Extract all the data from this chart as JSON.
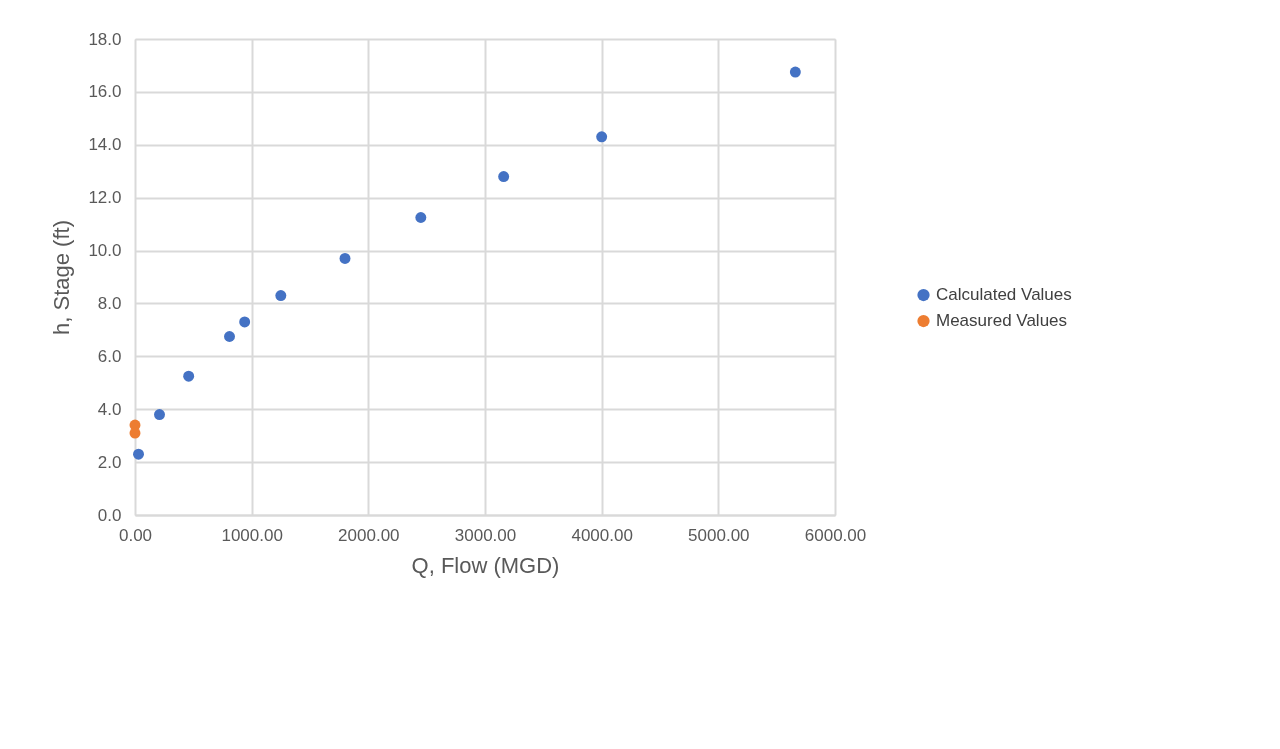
{
  "chart_data": {
    "type": "scatter",
    "xlabel": "Q, Flow (MGD)",
    "ylabel": "h, Stage (ft)",
    "xlim": [
      0,
      6000
    ],
    "xticks": [
      {
        "value": 0,
        "label": "0.00"
      },
      {
        "value": 1000,
        "label": "1000.00"
      },
      {
        "value": 2000,
        "label": "2000.00"
      },
      {
        "value": 3000,
        "label": "3000.00"
      },
      {
        "value": 4000,
        "label": "4000.00"
      },
      {
        "value": 5000,
        "label": "5000.00"
      },
      {
        "value": 6000,
        "label": "6000.00"
      }
    ],
    "ylim": [
      0,
      18
    ],
    "yticks": [
      {
        "value": 0,
        "label": "0.0"
      },
      {
        "value": 2,
        "label": "2.0"
      },
      {
        "value": 4,
        "label": "4.0"
      },
      {
        "value": 6,
        "label": "6.0"
      },
      {
        "value": 8,
        "label": "8.0"
      },
      {
        "value": 10,
        "label": "10.0"
      },
      {
        "value": 12,
        "label": "12.0"
      },
      {
        "value": 14,
        "label": "14.0"
      },
      {
        "value": 16,
        "label": "16.0"
      },
      {
        "value": 18,
        "label": "18.0"
      }
    ],
    "grid": true,
    "legend": "right",
    "marker": "circle",
    "series": [
      {
        "name": "Calculated Values",
        "color": "#4472c4",
        "x": [
          30,
          210,
          460,
          810,
          940,
          1250,
          1800,
          2450,
          3160,
          4000,
          5660
        ],
        "values": [
          2.3,
          3.8,
          5.25,
          6.75,
          7.3,
          8.3,
          9.7,
          11.25,
          12.8,
          14.3,
          16.75
        ]
      },
      {
        "name": "Measured Values",
        "color": "#ed7d31",
        "x": [
          0,
          0
        ],
        "values": [
          3.4,
          3.1
        ]
      }
    ]
  }
}
